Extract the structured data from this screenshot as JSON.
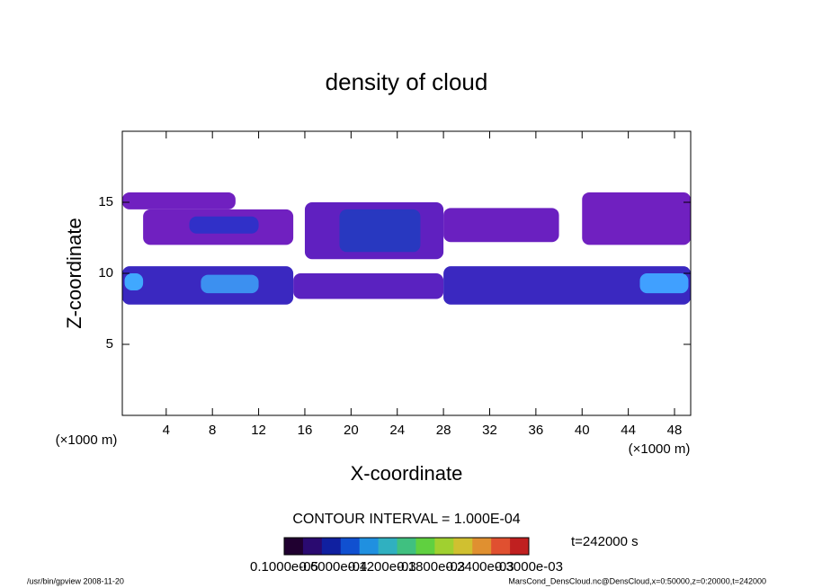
{
  "chart_data": {
    "type": "contour",
    "title": "density of cloud",
    "xlabel": "X-coordinate",
    "ylabel": "Z-coordinate",
    "xunit": "(×1000 m)",
    "yunit": "(×1000 m)",
    "xlim": [
      0.2,
      49.4
    ],
    "xticks": [
      4,
      8,
      12,
      16,
      20,
      24,
      28,
      32,
      36,
      40,
      44,
      48
    ],
    "ylim": [
      0,
      20
    ],
    "yticks": [
      5,
      10,
      15
    ],
    "regions": [
      {
        "x": [
          0.2,
          10
        ],
        "z": [
          14.5,
          15.7
        ],
        "color": "#7020c0"
      },
      {
        "x": [
          2,
          15
        ],
        "z": [
          12,
          14.5
        ],
        "color": "#7020c0"
      },
      {
        "x": [
          6,
          12
        ],
        "z": [
          12.8,
          14
        ],
        "color": "#3030c8"
      },
      {
        "x": [
          16,
          28
        ],
        "z": [
          11,
          15
        ],
        "color": "#6020c0"
      },
      {
        "x": [
          19,
          26
        ],
        "z": [
          11.5,
          14.5
        ],
        "color": "#2838c0"
      },
      {
        "x": [
          28,
          38
        ],
        "z": [
          12.2,
          14.6
        ],
        "color": "#6a20c0"
      },
      {
        "x": [
          40,
          49.4
        ],
        "z": [
          12,
          15.7
        ],
        "color": "#7020c0"
      },
      {
        "x": [
          0.2,
          15
        ],
        "z": [
          7.8,
          10.5
        ],
        "color": "#3a28c0"
      },
      {
        "x": [
          15,
          28
        ],
        "z": [
          8.2,
          10
        ],
        "color": "#5a22c0"
      },
      {
        "x": [
          28,
          49.4
        ],
        "z": [
          7.8,
          10.5
        ],
        "color": "#3a28c0"
      },
      {
        "x": [
          0.4,
          2
        ],
        "z": [
          8.8,
          10
        ],
        "color": "#40a8ff"
      },
      {
        "x": [
          7,
          12
        ],
        "z": [
          8.6,
          9.9
        ],
        "color": "#3c90f0"
      },
      {
        "x": [
          45,
          49.2
        ],
        "z": [
          8.6,
          10
        ],
        "color": "#40a0ff"
      }
    ],
    "contour_interval": "CONTOUR INTERVAL = 1.000E-04",
    "time_label": "t=242000 s",
    "colorbar": {
      "colors": [
        "#200030",
        "#2a0a70",
        "#1020a0",
        "#1050d0",
        "#2090e0",
        "#30b0c0",
        "#40c080",
        "#60d040",
        "#a0d030",
        "#d0c030",
        "#e09030",
        "#e05030",
        "#c02020"
      ],
      "labels": [
        "0.1000e-05",
        "0.6000e-04",
        "0.1200e-03",
        "0.1800e-03",
        "0.2400e-03",
        "0.3000e-03"
      ]
    },
    "footer_left": "/usr/bin/gpview  2008-11-20",
    "footer_right": "MarsCond_DensCloud.nc@DensCloud,x=0:50000,z=0:20000,t=242000"
  }
}
